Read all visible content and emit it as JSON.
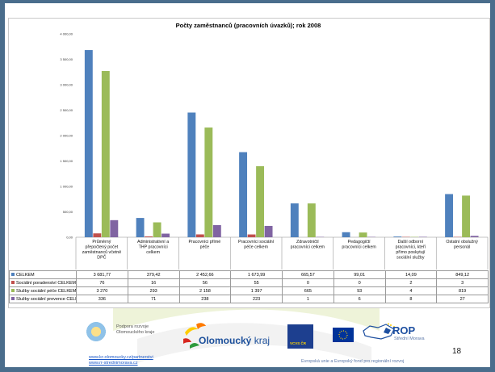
{
  "chart_data": {
    "type": "bar",
    "title": "Počty zaměstnanců (pracovních úvazků); rok 2008",
    "ylim": [
      0,
      4000
    ],
    "yticks": [
      "0,00",
      "500,00",
      "1 000,00",
      "1 500,00",
      "2 000,00",
      "2 500,00",
      "3 000,00",
      "3 500,00",
      "4 000,00"
    ],
    "grid": false,
    "legend": "data-table",
    "categories": [
      "Průměrný přepočtený počet zaměstnanců včetně DPČ",
      "Administrativní a THP pracovníci celkem",
      "Pracovníci přímé péče",
      "Pracovníci sociální péče celkem",
      "Zdravotničtí pracovníci celkem",
      "Pedagogičtí pracovníci celkem",
      "Další odborní pracovníci, kteří přímo poskytují sociální služby",
      "Ostatní obslužný personál"
    ],
    "category_lines": [
      [
        "Průměrný",
        "přepočtený počet",
        "zaměstnanců včetně",
        "DPČ"
      ],
      [
        "Administrativní a",
        "THP pracovníci",
        "celkem"
      ],
      [
        "Pracovníci přímé",
        "péče"
      ],
      [
        "Pracovníci sociální",
        "péče celkem"
      ],
      [
        "Zdravotničtí",
        "pracovníci celkem"
      ],
      [
        "Pedagogičtí",
        "pracovníci celkem"
      ],
      [
        "Další odborní",
        "pracovníci, kteří",
        "přímo poskytují",
        "sociální služby"
      ],
      [
        "Ostatní obslužný",
        "personál"
      ]
    ],
    "series": [
      {
        "name": "CELKEM",
        "color": "#4f81bd",
        "values": [
          3681.77,
          379.42,
          2452.66,
          1673.99,
          665.57,
          99.01,
          14.09,
          849.12
        ],
        "labels": [
          "3 681,77",
          "379,42",
          "2 452,66",
          "1 673,99",
          "665,57",
          "99,01",
          "14,09",
          "849,12"
        ]
      },
      {
        "name": "Sociální poradenství CELKEM",
        "color": "#c0504d",
        "values": [
          76,
          16,
          56,
          55,
          0,
          0,
          2,
          3
        ],
        "labels": [
          "76",
          "16",
          "56",
          "55",
          "0",
          "0",
          "2",
          "3"
        ]
      },
      {
        "name": "Služby sociální péče CELKEM",
        "color": "#9bbb59",
        "values": [
          3270,
          293,
          2158,
          1397,
          665,
          93,
          4,
          819
        ],
        "labels": [
          "3 270",
          "293",
          "2 158",
          "1 397",
          "665",
          "93",
          "4",
          "819"
        ]
      },
      {
        "name": "Služby sociální prevence CELKEM",
        "color": "#8064a2",
        "values": [
          336,
          71,
          238,
          223,
          1,
          6,
          8,
          27
        ],
        "labels": [
          "336",
          "71",
          "238",
          "223",
          "1",
          "6",
          "8",
          "27"
        ]
      }
    ]
  },
  "footer": {
    "podpora_line1": "Podpora rozvoje",
    "podpora_line2": "Olomouckého kraje",
    "olomoucky": "Olomoucký",
    "kraj": "kraj",
    "vcvs": "VCVS ČR",
    "rop": "ROP",
    "rop_sub": "Střední Morava",
    "link1": "www.kr-olomoucky.cz/partnerstvi",
    "link2": "www.rr-strednimorava.cz",
    "eu_note": "Evropská unie a Evropský fond pro regionální rozvoj",
    "page_number": "18"
  }
}
